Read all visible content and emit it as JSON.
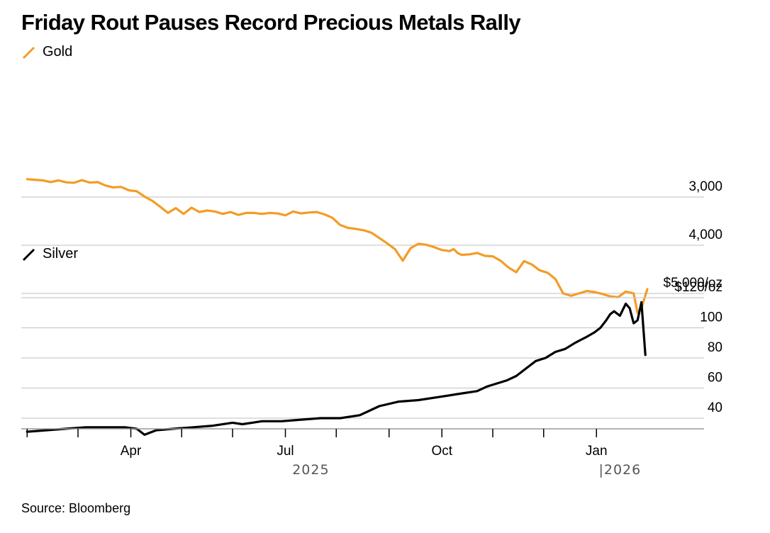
{
  "title": "Friday Rout Pauses Record Precious Metals Rally",
  "source": "Source: Bloomberg",
  "colors": {
    "gold": "#F39C26",
    "silver": "#000000",
    "grid": "#cccccc",
    "axis": "#9a9a9a"
  },
  "chart_data": [
    {
      "type": "line",
      "name": "Gold",
      "title": "Gold",
      "ylabel": "$/oz",
      "ylim": [
        2700,
        5200
      ],
      "yticks": [
        {
          "value": 5000,
          "label": "$5,000/oz"
        },
        {
          "value": 4000,
          "label": "4,000"
        },
        {
          "value": 3000,
          "label": "3,000"
        }
      ],
      "x": [
        0,
        3,
        8,
        12,
        16,
        20,
        24,
        28,
        32,
        36,
        40,
        44,
        48,
        52,
        56,
        60,
        64,
        68,
        72,
        76,
        80,
        84,
        88,
        92,
        96,
        100,
        104,
        108,
        112,
        116,
        120,
        124,
        128,
        132,
        136,
        140,
        144,
        148,
        152,
        156,
        160,
        164,
        168,
        172,
        176,
        180,
        184,
        188,
        192,
        196,
        200,
        204,
        208,
        212,
        216,
        218,
        220,
        222,
        226,
        230,
        234,
        238,
        242,
        246,
        250,
        254,
        258,
        262,
        266,
        270,
        274,
        278,
        282,
        286,
        290,
        294,
        298,
        302,
        306,
        310,
        312,
        314,
        317
      ],
      "values": [
        2630,
        2640,
        2655,
        2690,
        2655,
        2695,
        2705,
        2650,
        2700,
        2690,
        2760,
        2800,
        2790,
        2860,
        2880,
        2990,
        3080,
        3200,
        3330,
        3230,
        3350,
        3220,
        3310,
        3280,
        3300,
        3350,
        3310,
        3370,
        3330,
        3330,
        3350,
        3330,
        3340,
        3380,
        3300,
        3340,
        3320,
        3310,
        3360,
        3430,
        3580,
        3640,
        3660,
        3690,
        3740,
        3850,
        3960,
        4080,
        4320,
        4060,
        3970,
        3990,
        4040,
        4100,
        4120,
        4080,
        4160,
        4200,
        4190,
        4160,
        4220,
        4230,
        4320,
        4460,
        4560,
        4330,
        4400,
        4520,
        4570,
        4700,
        5000,
        5050,
        5000,
        4950,
        4970,
        5010,
        5060,
        5080,
        4960,
        5000,
        5400,
        5300,
        4910
      ]
    },
    {
      "type": "line",
      "name": "Silver",
      "title": "Silver",
      "ylabel": "$/oz",
      "ylim": [
        28,
        120
      ],
      "yticks": [
        {
          "value": 120,
          "label": "$120/oz"
        },
        {
          "value": 100,
          "label": "100"
        },
        {
          "value": 80,
          "label": "80"
        },
        {
          "value": 60,
          "label": "60"
        },
        {
          "value": 40,
          "label": "40"
        }
      ],
      "x": [
        0,
        10,
        20,
        30,
        40,
        50,
        56,
        60,
        62,
        66,
        75,
        85,
        95,
        105,
        110,
        115,
        120,
        130,
        140,
        150,
        160,
        170,
        180,
        190,
        200,
        210,
        220,
        230,
        235,
        240,
        245,
        250,
        255,
        260,
        265,
        270,
        275,
        280,
        283,
        286,
        290,
        293,
        296,
        298,
        300,
        303,
        306,
        308,
        310,
        312,
        314,
        316
      ],
      "values": [
        31,
        32,
        33,
        34,
        34,
        34,
        33,
        29,
        30,
        32,
        33,
        34,
        35,
        37,
        36,
        37,
        38,
        38,
        39,
        40,
        40,
        42,
        48,
        51,
        52,
        54,
        56,
        58,
        61,
        63,
        65,
        68,
        73,
        78,
        80,
        84,
        86,
        90,
        92,
        94,
        97,
        100,
        105,
        109,
        111,
        108,
        116,
        113,
        103,
        105,
        117,
        82
      ]
    }
  ],
  "xaxis": {
    "month_labels": [
      {
        "pos": 53,
        "label": "Apr"
      },
      {
        "pos": 132,
        "label": "Jul"
      },
      {
        "pos": 212,
        "label": "Oct"
      },
      {
        "pos": 291,
        "label": "Jan"
      }
    ],
    "minor_ticks": [
      0,
      26,
      53,
      79,
      105,
      132,
      158,
      185,
      212,
      238,
      264,
      291
    ],
    "year_labels": [
      {
        "pos": 145,
        "label": "2025"
      },
      {
        "pos": 303,
        "label": "|2026"
      }
    ],
    "xlim": [
      -3,
      346
    ]
  }
}
